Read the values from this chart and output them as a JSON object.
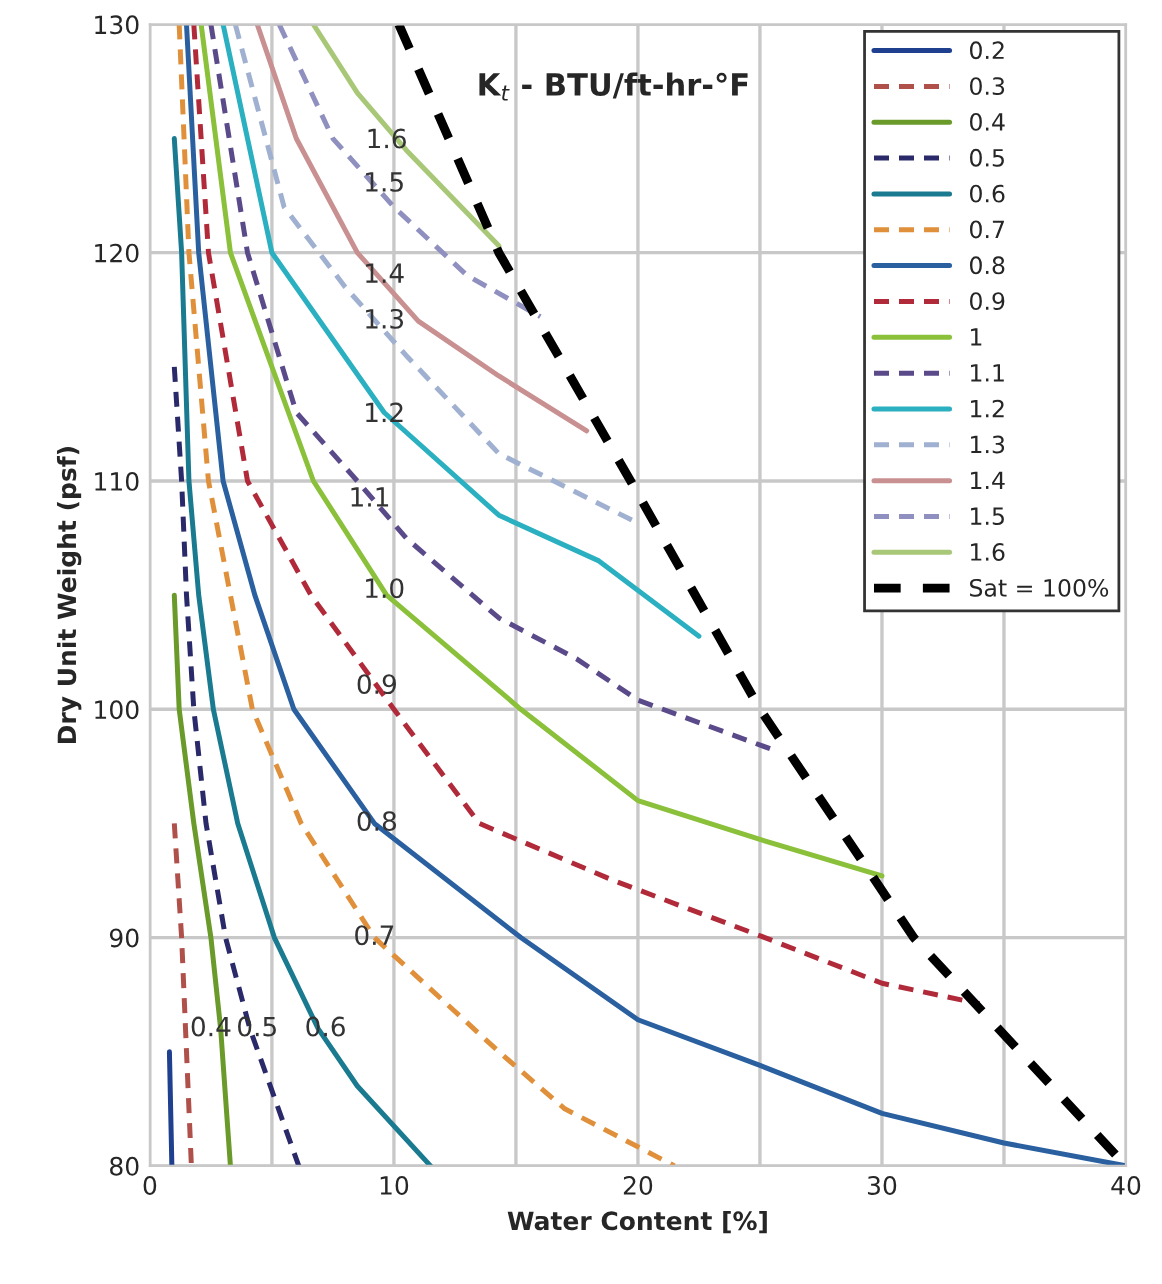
{
  "chart_data": {
    "type": "line",
    "title": "K$_{t}$ - BTU/ft-hr-°F",
    "xlabel": "Water Content [%]",
    "ylabel": "Dry Unit Weight (psf)",
    "xlim": [
      0,
      40
    ],
    "ylim": [
      80,
      130
    ],
    "xticks": [
      0,
      {
        "value": 5,
        "label": null
      },
      10,
      {
        "value": 15,
        "label": null
      },
      20,
      {
        "value": 25,
        "label": null
      },
      30,
      {
        "value": 35,
        "label": null
      },
      40
    ],
    "yticks": [
      80,
      90,
      100,
      110,
      120,
      130
    ],
    "grid": true,
    "legend": "top right",
    "marker": "none",
    "series": [
      {
        "name": "0.2",
        "color": "#1f3f8f",
        "line_style": "solid",
        "x": [
          0.8,
          0.9
        ],
        "values": [
          85,
          80
        ]
      },
      {
        "name": "0.3",
        "color": "#b0504a",
        "line_style": "dashed",
        "x": [
          1.0,
          1.3,
          1.5,
          1.7
        ],
        "values": [
          95,
          90,
          85,
          80
        ]
      },
      {
        "name": "0.4",
        "color": "#6a9a2a",
        "line_style": "solid",
        "x": [
          1.0,
          1.2,
          1.8,
          2.5,
          2.9,
          3.3
        ],
        "values": [
          105,
          100,
          95,
          90,
          86,
          80
        ]
      },
      {
        "name": "0.5",
        "color": "#2a2a6a",
        "line_style": "dashed",
        "x": [
          1.0,
          1.3,
          1.5,
          1.8,
          2.3,
          3.1,
          4.1,
          6.1
        ],
        "values": [
          115,
          110,
          105,
          100,
          95,
          90,
          86,
          80
        ]
      },
      {
        "name": "0.6",
        "color": "#1a7a90",
        "line_style": "solid",
        "x": [
          1.0,
          1.3,
          1.6,
          2.0,
          2.6,
          3.6,
          5.1,
          6.9,
          8.5,
          11.5
        ],
        "values": [
          125,
          120,
          110,
          105,
          100,
          95,
          90,
          86,
          83.5,
          80
        ]
      },
      {
        "name": "0.7",
        "color": "#e0903a",
        "line_style": "dashed",
        "x": [
          1.2,
          1.6,
          2.4,
          3.3,
          4.2,
          6.2,
          9.2,
          14.3,
          17,
          21.5
        ],
        "values": [
          130,
          120,
          110,
          105,
          100,
          95,
          90,
          85,
          82.5,
          80
        ]
      },
      {
        "name": "0.8",
        "color": "#2a60a0",
        "line_style": "solid",
        "x": [
          1.5,
          2.0,
          3.0,
          4.3,
          5.9,
          9.2,
          15.2,
          20,
          25,
          30,
          35,
          40
        ],
        "values": [
          130,
          120,
          110,
          105,
          100,
          95,
          90,
          86.4,
          84.4,
          82.3,
          81,
          80
        ]
      },
      {
        "name": "0.9",
        "color": "#b02a3a",
        "line_style": "dashed",
        "x": [
          1.8,
          2.4,
          4.0,
          6.6,
          10.0,
          13.5,
          19,
          25.2,
          30,
          34
        ],
        "values": [
          130,
          120,
          110,
          105,
          100,
          95,
          92.5,
          90,
          88,
          87.1
        ]
      },
      {
        "name": "1",
        "color": "#8ac03a",
        "line_style": "solid",
        "x": [
          2.1,
          3.3,
          6.7,
          9.7,
          15.2,
          20,
          25,
          30
        ],
        "values": [
          130,
          120,
          110,
          105,
          100,
          96,
          94.3,
          92.7
        ]
      },
      {
        "name": "1.1",
        "color": "#5a4a8a",
        "line_style": "dashed",
        "x": [
          2.5,
          4.0,
          6.0,
          8.5,
          10.5,
          14.3,
          17.5,
          20,
          25.6
        ],
        "values": [
          130,
          120,
          113,
          110,
          107.5,
          104,
          102.2,
          100.4,
          98.2
        ]
      },
      {
        "name": "1.2",
        "color": "#2ab0c0",
        "line_style": "solid",
        "x": [
          3.0,
          5.0,
          9.6,
          14.3,
          18.4,
          22.5
        ],
        "values": [
          130,
          120,
          113,
          108.5,
          106.5,
          103.2
        ]
      },
      {
        "name": "1.3",
        "color": "#a0b0d0",
        "line_style": "dashed",
        "x": [
          3.5,
          5.5,
          8.0,
          10.5,
          14.3,
          20.1
        ],
        "values": [
          130,
          122,
          118.5,
          115.5,
          111.2,
          108.1
        ]
      },
      {
        "name": "1.4",
        "color": "#c89090",
        "line_style": "solid",
        "x": [
          4.4,
          6.0,
          8.5,
          11,
          14.3,
          17.9
        ],
        "values": [
          130,
          125,
          120,
          117,
          114.6,
          112.2
        ]
      },
      {
        "name": "1.5",
        "color": "#9090c0",
        "line_style": "dashed",
        "x": [
          5.3,
          7.5,
          10,
          13,
          16
        ],
        "values": [
          130,
          125,
          122,
          119,
          117.2
        ]
      },
      {
        "name": "1.6",
        "color": "#a8c878",
        "line_style": "solid",
        "x": [
          6.7,
          8.5,
          10.5,
          14.3
        ],
        "values": [
          130,
          127,
          124.5,
          120.3
        ]
      },
      {
        "name": "Sat = 100%",
        "color": "#000000",
        "line_style": "dashed",
        "x": [
          10.2,
          14.3,
          19.7,
          25.0,
          31.3,
          40
        ],
        "values": [
          130,
          120,
          110,
          100,
          90,
          80
        ]
      }
    ],
    "annotations": [
      {
        "text": "0.4",
        "x": 2.5,
        "y": 86
      },
      {
        "text": "0.5",
        "x": 4.4,
        "y": 86
      },
      {
        "text": "0.6",
        "x": 7.2,
        "y": 86
      },
      {
        "text": "0.7",
        "x": 9.2,
        "y": 90
      },
      {
        "text": "0.8",
        "x": 9.3,
        "y": 95
      },
      {
        "text": "0.9",
        "x": 9.3,
        "y": 101
      },
      {
        "text": "1.0",
        "x": 9.6,
        "y": 105.2
      },
      {
        "text": "1.1",
        "x": 9.0,
        "y": 109.2
      },
      {
        "text": "1.2",
        "x": 9.6,
        "y": 112.9
      },
      {
        "text": "1.3",
        "x": 9.6,
        "y": 117
      },
      {
        "text": "1.4",
        "x": 9.6,
        "y": 119
      },
      {
        "text": "1.5",
        "x": 9.6,
        "y": 123
      },
      {
        "text": "1.6",
        "x": 9.7,
        "y": 124.9
      }
    ]
  }
}
